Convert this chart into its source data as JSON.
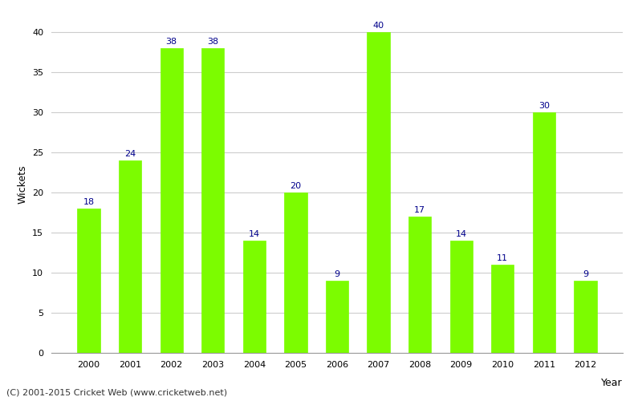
{
  "years": [
    "2000",
    "2001",
    "2002",
    "2003",
    "2004",
    "2005",
    "2006",
    "2007",
    "2008",
    "2009",
    "2010",
    "2011",
    "2012"
  ],
  "values": [
    18,
    24,
    38,
    38,
    14,
    20,
    9,
    40,
    17,
    14,
    11,
    30,
    9
  ],
  "bar_color": "#7CFC00",
  "bar_edge_color": "#7CFC00",
  "label_color": "#00008B",
  "label_fontsize": 8,
  "ylabel": "Wickets",
  "ylim": [
    0,
    42
  ],
  "yticks": [
    0,
    5,
    10,
    15,
    20,
    25,
    30,
    35,
    40
  ],
  "grid_color": "#cccccc",
  "background_color": "#ffffff",
  "footer_text": "(C) 2001-2015 Cricket Web (www.cricketweb.net)",
  "footer_fontsize": 8,
  "footer_color": "#333333",
  "ylabel_fontsize": 9,
  "tick_fontsize": 8,
  "bar_width": 0.55,
  "year_label_text": "Year",
  "year_label_fontsize": 9
}
